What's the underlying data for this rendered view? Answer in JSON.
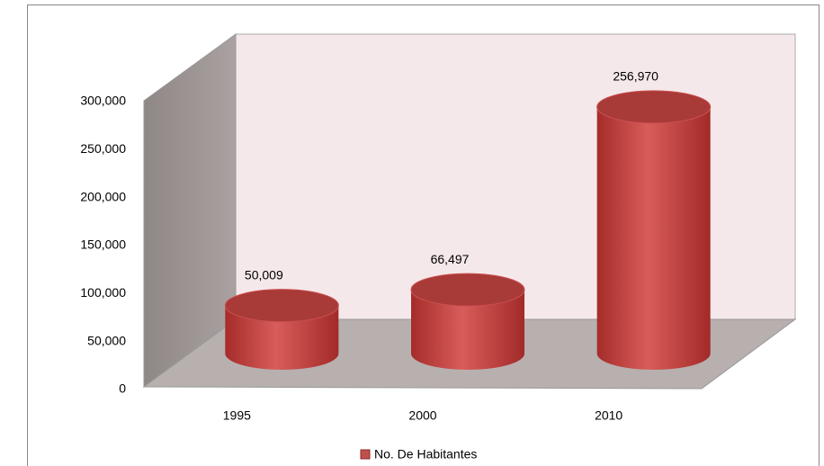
{
  "chart_data": {
    "type": "bar3d",
    "categories": [
      "1995",
      "2000",
      "2010"
    ],
    "series": [
      {
        "name": "No. De Habitantes",
        "color": "#c0504d",
        "values": [
          50009,
          66497,
          256970
        ],
        "value_labels": [
          "50,009",
          "66,497",
          "256,970"
        ]
      }
    ],
    "ylim": [
      0,
      300000
    ],
    "yticks": [
      0,
      {
        "value": 50000,
        "label": "50,000"
      },
      {
        "value": 100000,
        "label": "100,000"
      },
      {
        "value": 150000,
        "label": "150,000"
      },
      {
        "value": 200000,
        "label": "200,000"
      },
      {
        "value": 250000,
        "label": "250,000"
      },
      {
        "value": 300000,
        "label": "300,000"
      }
    ],
    "grid": false,
    "legend": "bottom"
  }
}
